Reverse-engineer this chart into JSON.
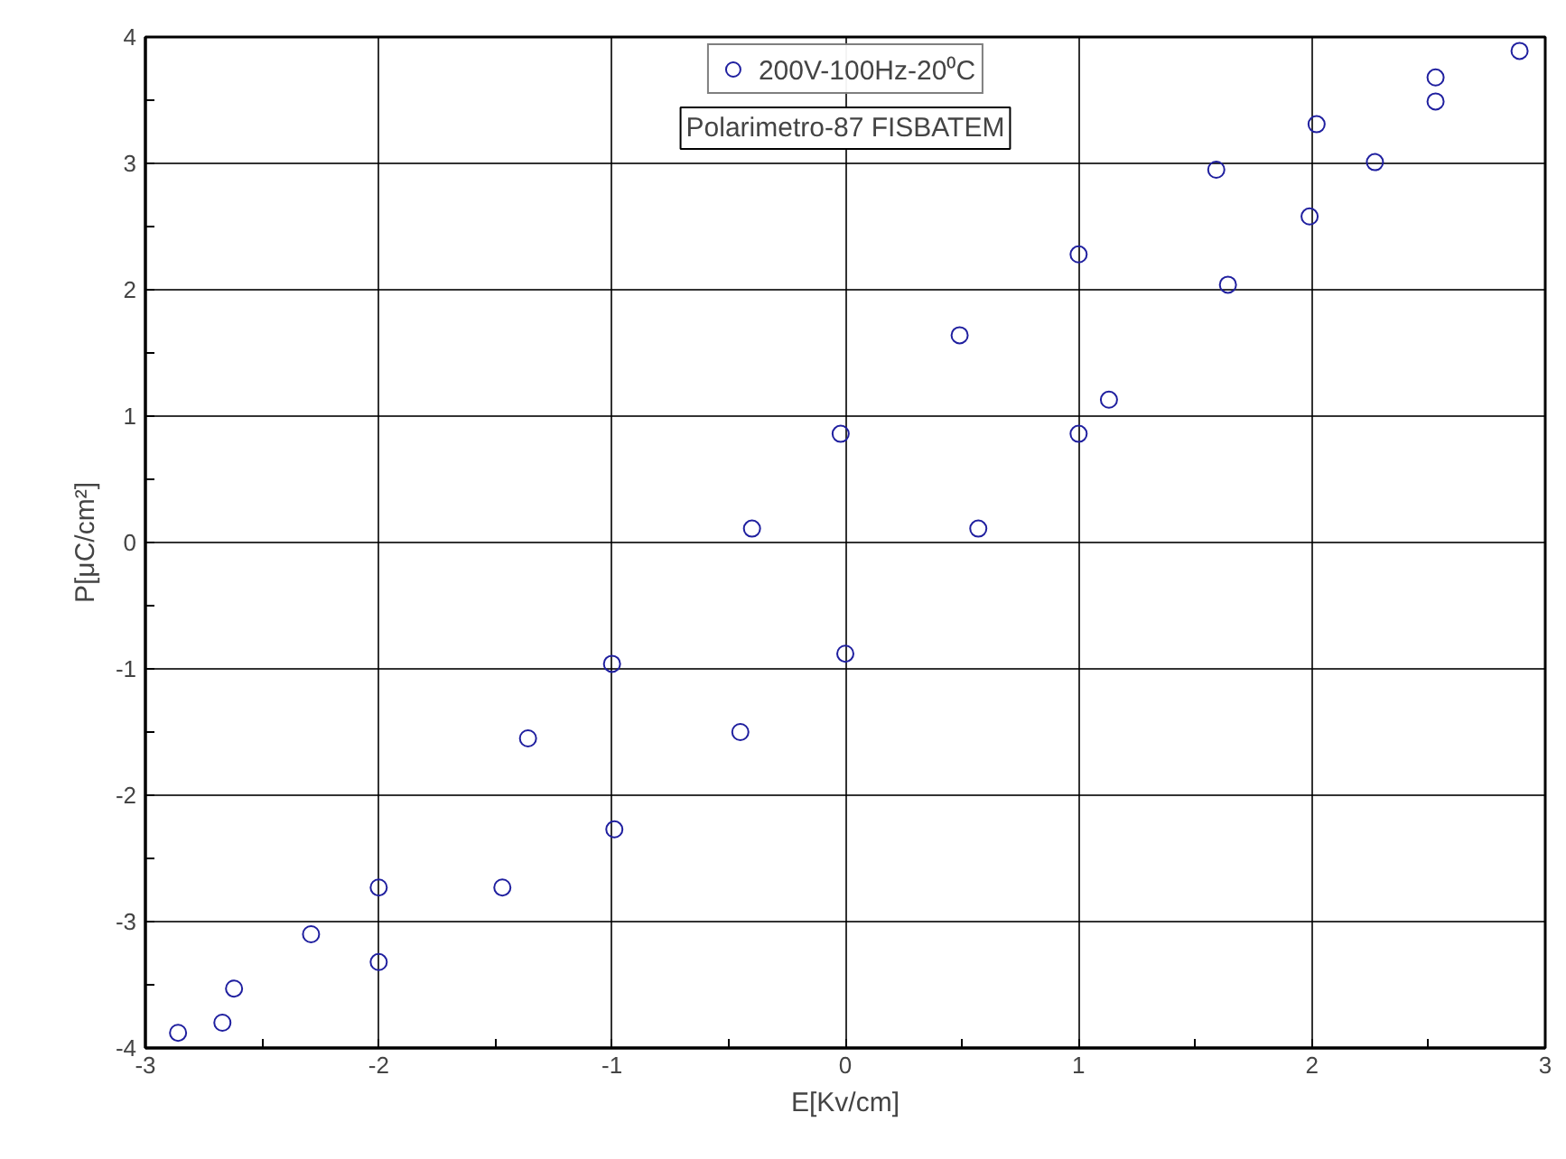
{
  "chart_data": {
    "type": "scatter",
    "xlabel": "E[Kv/cm]",
    "ylabel": "P[μC/cm²]",
    "annotations": [
      "Polarimetro-87 FISBATEM"
    ],
    "series": [
      {
        "name": "200V-100Hz-20⁰C",
        "color": "#1f1f9f",
        "x": [
          2.89,
          2.53,
          2.02,
          1.59,
          1.0,
          0.49,
          -0.02,
          -0.4,
          -1.0,
          -1.36,
          -2.0,
          -2.29,
          -2.62,
          -2.86,
          -2.67,
          -2.0,
          -1.47,
          -0.99,
          -0.45,
          0.0,
          0.57,
          1.0,
          1.13,
          1.64,
          1.99,
          2.27,
          2.53
        ],
        "values": [
          3.89,
          3.68,
          3.31,
          2.95,
          2.28,
          1.64,
          0.86,
          0.11,
          -0.96,
          -1.55,
          -2.73,
          -3.1,
          -3.53,
          -3.88,
          -3.8,
          -3.32,
          -2.73,
          -2.27,
          -1.5,
          -0.88,
          0.11,
          0.86,
          1.13,
          2.04,
          2.58,
          3.01,
          3.49
        ]
      }
    ],
    "xlim": [
      -3,
      3
    ],
    "ylim": [
      -4,
      4
    ],
    "xticks": [
      -3,
      {
        "value": -2.5,
        "label": null
      },
      -2,
      {
        "value": -1.5,
        "label": null
      },
      -1,
      {
        "value": -0.5,
        "label": null
      },
      0,
      {
        "value": 0.5,
        "label": null
      },
      1,
      {
        "value": 1.5,
        "label": null
      },
      2,
      {
        "value": 2.5,
        "label": null
      },
      3
    ],
    "yticks": [
      -4,
      {
        "value": -3.5,
        "label": null
      },
      -3,
      {
        "value": -2.5,
        "label": null
      },
      -2,
      {
        "value": -1.5,
        "label": null
      },
      -1,
      {
        "value": -0.5,
        "label": null
      },
      0,
      {
        "value": 0.5,
        "label": null
      },
      1,
      {
        "value": 1.5,
        "label": null
      },
      2,
      {
        "value": 2.5,
        "label": null
      },
      3,
      {
        "value": 3.5,
        "label": null
      },
      4
    ],
    "grid": true,
    "legend": "top",
    "marker": "circle"
  }
}
